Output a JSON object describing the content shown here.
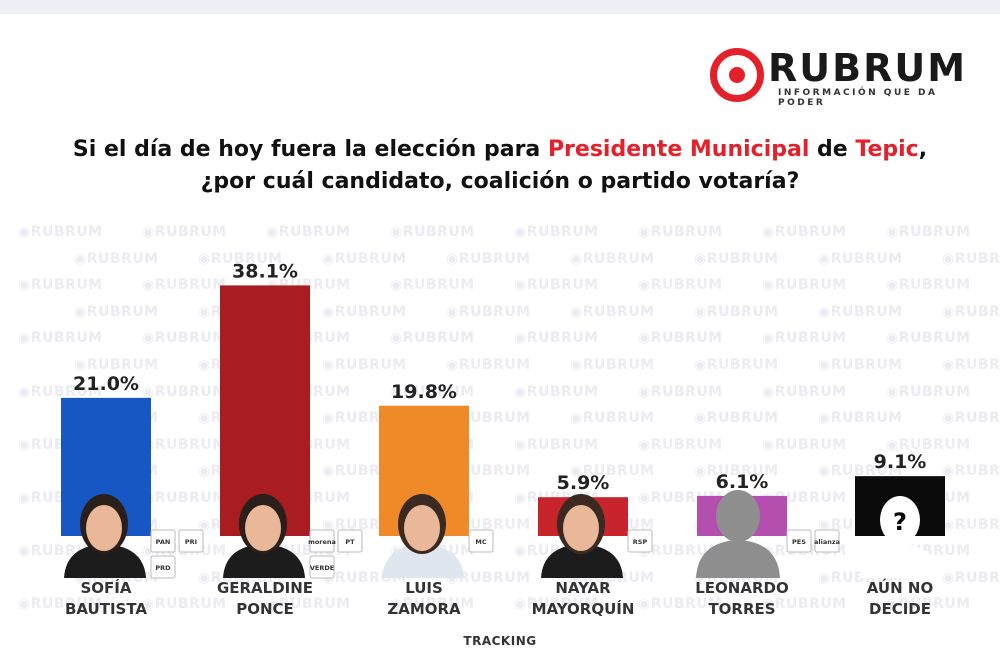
{
  "brand": {
    "name": "RUBRUM",
    "tagline": "INFORMACIÓN QUE DA PODER",
    "color": "#e4202b"
  },
  "question": {
    "part1": "Si el día de hoy fuera la elección para ",
    "highlight1": "Presidente Municipal",
    "part2": " de ",
    "highlight2": "Tepic",
    "part3": ",",
    "line2": "¿por cuál candidato, coalición o partido votaría?"
  },
  "watermark_text": "RUBRUM",
  "footer": "TRACKING",
  "chart_data": {
    "type": "bar",
    "categories": [
      "SOFÍA BAUTISTA",
      "GERALDINE PONCE",
      "LUIS ZAMORA",
      "NAYAR MAYORQUÍN",
      "LEONARDO TORRES",
      "AÚN NO DECIDE"
    ],
    "category_lines": [
      [
        "SOFÍA",
        "BAUTISTA"
      ],
      [
        "GERALDINE",
        "PONCE"
      ],
      [
        "LUIS",
        "ZAMORA"
      ],
      [
        "NAYAR",
        "MAYORQUÍN"
      ],
      [
        "LEONARDO",
        "TORRES"
      ],
      [
        "AÚN NO",
        "DECIDE"
      ]
    ],
    "values": [
      21.0,
      38.1,
      19.8,
      5.9,
      6.1,
      9.1
    ],
    "data_labels": [
      "21.0%",
      "38.1%",
      "19.8%",
      "5.9%",
      "6.1%",
      "9.1%"
    ],
    "colors": [
      "#1757c4",
      "#a81c22",
      "#f08a28",
      "#c8242b",
      "#b44fb0",
      "#0b0b0b"
    ],
    "party_logos": [
      [
        "PAN",
        "PRI",
        "PRD"
      ],
      [
        "morena",
        "PT",
        "VERDE"
      ],
      [
        "MC"
      ],
      [
        "RSP"
      ],
      [
        "PES",
        "alianza"
      ],
      []
    ],
    "ylim": [
      0,
      40
    ],
    "grid": false,
    "title": "",
    "xlabel": "",
    "ylabel": ""
  }
}
